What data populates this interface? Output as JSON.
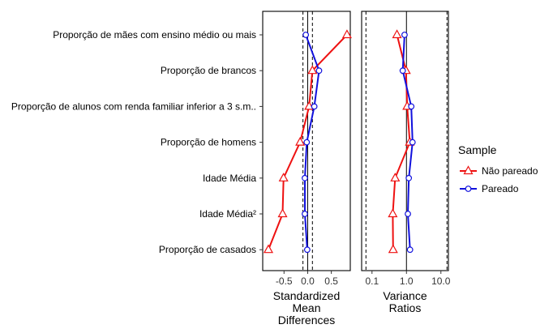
{
  "chart_data": [
    {
      "type": "line",
      "panel": "standardized-mean-differences",
      "xlabel": "Standardized\nMean\nDifferences",
      "xlim": [
        -0.95,
        0.9
      ],
      "x_ticks": [
        -0.5,
        0.0,
        0.5
      ],
      "x_tick_labels": [
        "-0.5",
        "0.0",
        "0.5"
      ],
      "reference_lines": {
        "solid": [
          0.0
        ],
        "dashed": [
          -0.1,
          0.1
        ]
      },
      "categories": [
        "Proporção de mães com ensino médio ou mais",
        "Proporção de brancos",
        "Proporção de alunos com renda familiar inferior a 3 s.m..",
        "Proporção de homens",
        "Idade Média",
        "Idade Média²",
        "Proporção de casados"
      ],
      "series": [
        {
          "name": "Não pareado",
          "values": [
            0.83,
            0.1,
            0.03,
            -0.16,
            -0.51,
            -0.53,
            -0.83
          ]
        },
        {
          "name": "Pareado",
          "values": [
            -0.04,
            0.24,
            0.14,
            -0.02,
            -0.06,
            -0.06,
            -0.01
          ]
        }
      ],
      "grid": false
    },
    {
      "type": "line",
      "panel": "variance-ratios",
      "xlabel": "Variance\nRatios",
      "x_scale": "log",
      "xlim": [
        0.05,
        16.5
      ],
      "x_ticks": [
        0.1,
        1.0,
        10.0
      ],
      "x_tick_labels": [
        "0.1",
        "1.0",
        "10.0"
      ],
      "reference_lines": {
        "solid": [
          1.0
        ],
        "dashed": [
          0.0667,
          15.0
        ]
      },
      "categories": [
        "Proporção de mães com ensino médio ou mais",
        "Proporção de brancos",
        "Proporção de alunos com renda familiar inferior a 3 s.m..",
        "Proporção de homens",
        "Idade Média",
        "Idade Média²",
        "Proporção de casados"
      ],
      "series": [
        {
          "name": "Não pareado",
          "values": [
            0.53,
            0.97,
            1.05,
            1.25,
            0.47,
            0.4,
            0.41
          ]
        },
        {
          "name": "Pareado",
          "values": [
            0.88,
            0.78,
            1.38,
            1.5,
            1.17,
            1.1,
            1.27
          ]
        }
      ],
      "grid": false
    }
  ],
  "legend": {
    "title": "Sample",
    "items": [
      {
        "label": "Não pareado",
        "color": "#ee1111",
        "marker": "triangle"
      },
      {
        "label": "Pareado",
        "color": "#1111dd",
        "marker": "circle"
      }
    ],
    "placement": "right"
  },
  "colors": {
    "unmatched": "#ee1111",
    "matched": "#1111dd"
  }
}
